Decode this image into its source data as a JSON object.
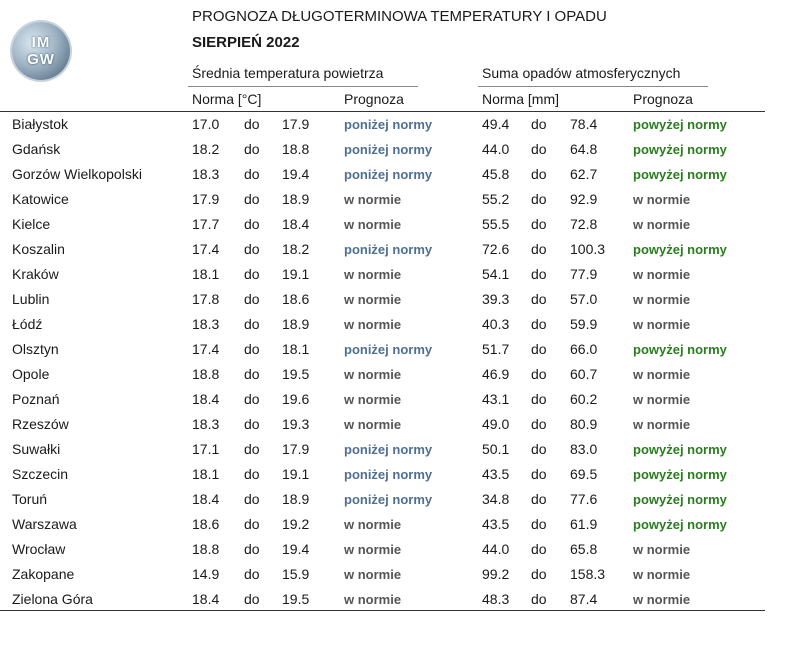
{
  "logo": {
    "top": "IM",
    "bottom": "GW"
  },
  "header": {
    "title": "PROGNOZA DŁUGOTERMINOWA TEMPERATURY I OPADU",
    "subtitle": "SIERPIEŃ 2022"
  },
  "groups": {
    "temperature": "Średnia temperatura powietrza",
    "precipitation": "Suma opadów atmosferycznych"
  },
  "columns": {
    "temp_norm": "Norma [°C]",
    "temp_forecast": "Prognoza",
    "rain_norm": "Norma [mm]",
    "rain_forecast": "Prognoza"
  },
  "status_colors": {
    "below": "#4f6f93",
    "normal": "#555555",
    "above": "#2a7d1e"
  },
  "rows": [
    {
      "city": "Białystok",
      "t_min": "17.0",
      "t_do": "do",
      "t_max": "17.9",
      "t_fc": "poniżej normy",
      "t_st": "below",
      "r_min": "49.4",
      "r_do": "do",
      "r_max": "78.4",
      "r_fc": "powyżej normy",
      "r_st": "above"
    },
    {
      "city": "Gdańsk",
      "t_min": "18.2",
      "t_do": "do",
      "t_max": "18.8",
      "t_fc": "poniżej normy",
      "t_st": "below",
      "r_min": "44.0",
      "r_do": "do",
      "r_max": "64.8",
      "r_fc": "powyżej normy",
      "r_st": "above"
    },
    {
      "city": "Gorzów Wielkopolski",
      "t_min": "18.3",
      "t_do": "do",
      "t_max": "19.4",
      "t_fc": "poniżej normy",
      "t_st": "below",
      "r_min": "45.8",
      "r_do": "do",
      "r_max": "62.7",
      "r_fc": "powyżej normy",
      "r_st": "above"
    },
    {
      "city": "Katowice",
      "t_min": "17.9",
      "t_do": "do",
      "t_max": "18.9",
      "t_fc": "w normie",
      "t_st": "normal",
      "r_min": "55.2",
      "r_do": "do",
      "r_max": "92.9",
      "r_fc": "w normie",
      "r_st": "normal"
    },
    {
      "city": "Kielce",
      "t_min": "17.7",
      "t_do": "do",
      "t_max": "18.4",
      "t_fc": "w normie",
      "t_st": "normal",
      "r_min": "55.5",
      "r_do": "do",
      "r_max": "72.8",
      "r_fc": "w normie",
      "r_st": "normal"
    },
    {
      "city": "Koszalin",
      "t_min": "17.4",
      "t_do": "do",
      "t_max": "18.2",
      "t_fc": "poniżej normy",
      "t_st": "below",
      "r_min": "72.6",
      "r_do": "do",
      "r_max": "100.3",
      "r_fc": "powyżej normy",
      "r_st": "above"
    },
    {
      "city": "Kraków",
      "t_min": "18.1",
      "t_do": "do",
      "t_max": "19.1",
      "t_fc": "w normie",
      "t_st": "normal",
      "r_min": "54.1",
      "r_do": "do",
      "r_max": "77.9",
      "r_fc": "w normie",
      "r_st": "normal"
    },
    {
      "city": "Lublin",
      "t_min": "17.8",
      "t_do": "do",
      "t_max": "18.6",
      "t_fc": "w normie",
      "t_st": "normal",
      "r_min": "39.3",
      "r_do": "do",
      "r_max": "57.0",
      "r_fc": "w normie",
      "r_st": "normal"
    },
    {
      "city": "Łódź",
      "t_min": "18.3",
      "t_do": "do",
      "t_max": "18.9",
      "t_fc": "w normie",
      "t_st": "normal",
      "r_min": "40.3",
      "r_do": "do",
      "r_max": "59.9",
      "r_fc": "w normie",
      "r_st": "normal"
    },
    {
      "city": "Olsztyn",
      "t_min": "17.4",
      "t_do": "do",
      "t_max": "18.1",
      "t_fc": "poniżej normy",
      "t_st": "below",
      "r_min": "51.7",
      "r_do": "do",
      "r_max": "66.0",
      "r_fc": "powyżej normy",
      "r_st": "above"
    },
    {
      "city": "Opole",
      "t_min": "18.8",
      "t_do": "do",
      "t_max": "19.5",
      "t_fc": "w normie",
      "t_st": "normal",
      "r_min": "46.9",
      "r_do": "do",
      "r_max": "60.7",
      "r_fc": "w normie",
      "r_st": "normal"
    },
    {
      "city": "Poznań",
      "t_min": "18.4",
      "t_do": "do",
      "t_max": "19.6",
      "t_fc": "w normie",
      "t_st": "normal",
      "r_min": "43.1",
      "r_do": "do",
      "r_max": "60.2",
      "r_fc": "w normie",
      "r_st": "normal"
    },
    {
      "city": "Rzeszów",
      "t_min": "18.3",
      "t_do": "do",
      "t_max": "19.3",
      "t_fc": "w normie",
      "t_st": "normal",
      "r_min": "49.0",
      "r_do": "do",
      "r_max": "80.9",
      "r_fc": "w normie",
      "r_st": "normal"
    },
    {
      "city": "Suwałki",
      "t_min": "17.1",
      "t_do": "do",
      "t_max": "17.9",
      "t_fc": "poniżej normy",
      "t_st": "below",
      "r_min": "50.1",
      "r_do": "do",
      "r_max": "83.0",
      "r_fc": "powyżej normy",
      "r_st": "above"
    },
    {
      "city": "Szczecin",
      "t_min": "18.1",
      "t_do": "do",
      "t_max": "19.1",
      "t_fc": "poniżej normy",
      "t_st": "below",
      "r_min": "43.5",
      "r_do": "do",
      "r_max": "69.5",
      "r_fc": "powyżej normy",
      "r_st": "above"
    },
    {
      "city": "Toruń",
      "t_min": "18.4",
      "t_do": "do",
      "t_max": "18.9",
      "t_fc": "poniżej normy",
      "t_st": "below",
      "r_min": "34.8",
      "r_do": "do",
      "r_max": "77.6",
      "r_fc": "powyżej normy",
      "r_st": "above"
    },
    {
      "city": "Warszawa",
      "t_min": "18.6",
      "t_do": "do",
      "t_max": "19.2",
      "t_fc": "w normie",
      "t_st": "normal",
      "r_min": "43.5",
      "r_do": "do",
      "r_max": "61.9",
      "r_fc": "powyżej normy",
      "r_st": "above"
    },
    {
      "city": "Wrocław",
      "t_min": "18.8",
      "t_do": "do",
      "t_max": "19.4",
      "t_fc": "w normie",
      "t_st": "normal",
      "r_min": "44.0",
      "r_do": "do",
      "r_max": "65.8",
      "r_fc": "w normie",
      "r_st": "normal"
    },
    {
      "city": "Zakopane",
      "t_min": "14.9",
      "t_do": "do",
      "t_max": "15.9",
      "t_fc": "w normie",
      "t_st": "normal",
      "r_min": "99.2",
      "r_do": "do",
      "r_max": "158.3",
      "r_fc": "w normie",
      "r_st": "normal"
    },
    {
      "city": "Zielona Góra",
      "t_min": "18.4",
      "t_do": "do",
      "t_max": "19.5",
      "t_fc": "w normie",
      "t_st": "normal",
      "r_min": "48.3",
      "r_do": "do",
      "r_max": "87.4",
      "r_fc": "w normie",
      "r_st": "normal"
    }
  ]
}
